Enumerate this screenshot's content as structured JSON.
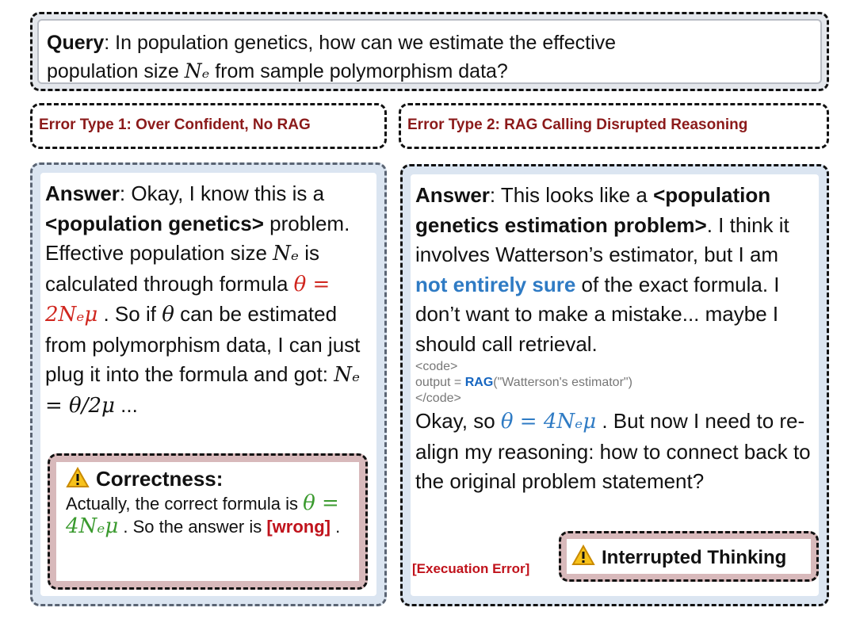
{
  "query": {
    "label": "Query",
    "text1": ": In population genetics, how can we estimate the effective",
    "text2a": "population size ",
    "ne": "Nₑ",
    "text2b": " from sample polymorphism data?"
  },
  "error_types": [
    "Error Type 1: Over Confident, No RAG",
    "Error Type 2: RAG Calling Disrupted Reasoning"
  ],
  "left": {
    "label": "Answer",
    "t1": ": Okay, I know this is a ",
    "b1": "<population genetics>",
    "t2": " problem. Effective population size ",
    "ne": "Nₑ",
    "t3": " is calculated through formula ",
    "f1": "θ = 2Nₑμ",
    "t4": " . So if ",
    "theta": "θ",
    "t5": " can be estimated from polymorphism data, I can just plug it into the formula and got: ",
    "f2": "Nₑ = θ/2μ",
    "t6": " ...",
    "correctness": {
      "title": "Correctness:",
      "t1": "Actually, the correct formula is ",
      "f": "θ = 4Nₑμ",
      "t2": " . So the answer is ",
      "wrong": "[wrong]",
      "t3": " ."
    }
  },
  "right": {
    "label": "Answer",
    "t1": ": This looks like a ",
    "b1": "<population genetics estimation problem>",
    "t2": ". I think it involves Watterson’s estimator, but I am ",
    "blue": "not entirely sure",
    "t3": " of the exact formula. I don’t want to make a mistake... maybe I should call retrieval.",
    "code_open": "<code>",
    "code_pre": "output = ",
    "code_fn": "RAG",
    "code_arg": "(\"Watterson's estimator\")",
    "code_close": "</code>",
    "t4": "Okay, so ",
    "f": "θ = 4Nₑμ",
    "t5": " .  But now I need to re-align my reasoning: how to connect back to the original problem statement?",
    "exec_error": "[Execuation Error]",
    "interrupted": "Interrupted Thinking"
  },
  "colors": {
    "error_red": "#8b1a1a",
    "blue": "#2f7bc4",
    "green": "#3a9a2e",
    "warn_fill": "#d8b9bb"
  }
}
